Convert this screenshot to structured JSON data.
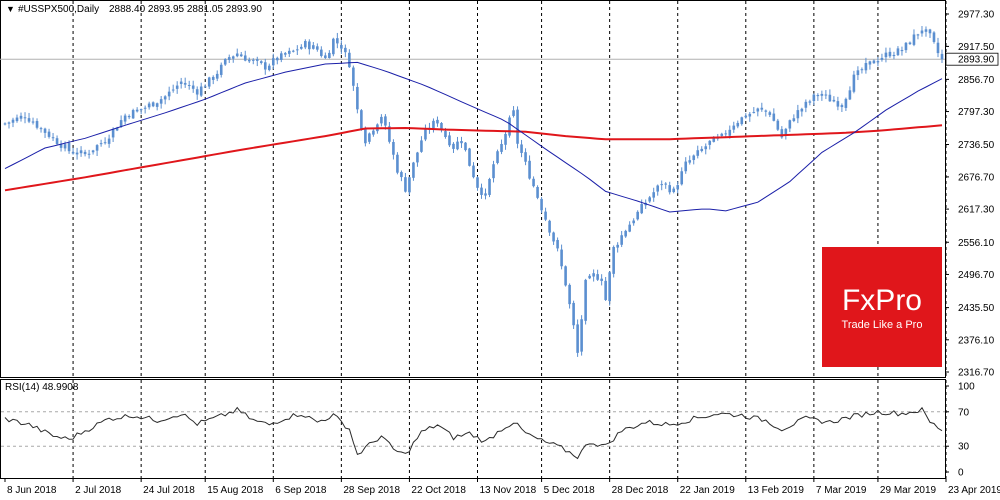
{
  "chart_data": {
    "type": "candlestick",
    "symbol_label": "#USSPX500,Daily",
    "ohlc_readout": "2888.40 2893.95 2881.05 2893.90",
    "price_label": "2893.90",
    "ylim": [
      2316.7,
      2977.3
    ],
    "yticks": [
      "2977.30",
      "2917.50",
      "2856.70",
      "2797.30",
      "2736.50",
      "2676.70",
      "2617.30",
      "2556.10",
      "2496.70",
      "2435.50",
      "2376.10",
      "2316.70"
    ],
    "xticks": [
      "8 Jun 2018",
      "2 Jul 2018",
      "24 Jul 2018",
      "15 Aug 2018",
      "6 Sep 2018",
      "28 Sep 2018",
      "22 Oct 2018",
      "13 Nov 2018",
      "5 Dec 2018",
      "28 Dec 2018",
      "22 Jan 2019",
      "13 Feb 2019",
      "7 Mar 2019",
      "29 Mar 2019",
      "23 Apr 2019"
    ],
    "anchors": [
      {
        "i": 0,
        "v": 2775
      },
      {
        "i": 5,
        "v": 2790
      },
      {
        "i": 10,
        "v": 2760
      },
      {
        "i": 16,
        "v": 2725
      },
      {
        "i": 20,
        "v": 2718
      },
      {
        "i": 25,
        "v": 2745
      },
      {
        "i": 30,
        "v": 2790
      },
      {
        "i": 35,
        "v": 2805
      },
      {
        "i": 40,
        "v": 2825
      },
      {
        "i": 44,
        "v": 2852
      },
      {
        "i": 48,
        "v": 2835
      },
      {
        "i": 52,
        "v": 2860
      },
      {
        "i": 56,
        "v": 2898
      },
      {
        "i": 58,
        "v": 2905
      },
      {
        "i": 62,
        "v": 2888
      },
      {
        "i": 65,
        "v": 2880
      },
      {
        "i": 68,
        "v": 2895
      },
      {
        "i": 72,
        "v": 2908
      },
      {
        "i": 75,
        "v": 2922
      },
      {
        "i": 78,
        "v": 2912
      },
      {
        "i": 80,
        "v": 2895
      },
      {
        "i": 82,
        "v": 2930
      },
      {
        "i": 84,
        "v": 2918
      },
      {
        "i": 86,
        "v": 2886
      },
      {
        "i": 88,
        "v": 2800
      },
      {
        "i": 90,
        "v": 2745
      },
      {
        "i": 92,
        "v": 2768
      },
      {
        "i": 94,
        "v": 2790
      },
      {
        "i": 96,
        "v": 2742
      },
      {
        "i": 98,
        "v": 2690
      },
      {
        "i": 100,
        "v": 2655
      },
      {
        "i": 102,
        "v": 2700
      },
      {
        "i": 104,
        "v": 2745
      },
      {
        "i": 106,
        "v": 2770
      },
      {
        "i": 108,
        "v": 2780
      },
      {
        "i": 110,
        "v": 2752
      },
      {
        "i": 112,
        "v": 2732
      },
      {
        "i": 114,
        "v": 2748
      },
      {
        "i": 116,
        "v": 2700
      },
      {
        "i": 118,
        "v": 2660
      },
      {
        "i": 120,
        "v": 2640
      },
      {
        "i": 122,
        "v": 2700
      },
      {
        "i": 124,
        "v": 2735
      },
      {
        "i": 126,
        "v": 2780
      },
      {
        "i": 127,
        "v": 2795
      },
      {
        "i": 128,
        "v": 2740
      },
      {
        "i": 130,
        "v": 2700
      },
      {
        "i": 132,
        "v": 2660
      },
      {
        "i": 134,
        "v": 2620
      },
      {
        "i": 136,
        "v": 2580
      },
      {
        "i": 138,
        "v": 2540
      },
      {
        "i": 140,
        "v": 2480
      },
      {
        "i": 142,
        "v": 2400
      },
      {
        "i": 143,
        "v": 2351
      },
      {
        "i": 145,
        "v": 2480
      },
      {
        "i": 147,
        "v": 2495
      },
      {
        "i": 149,
        "v": 2490
      },
      {
        "i": 150,
        "v": 2450
      },
      {
        "i": 152,
        "v": 2545
      },
      {
        "i": 155,
        "v": 2580
      },
      {
        "i": 158,
        "v": 2610
      },
      {
        "i": 161,
        "v": 2640
      },
      {
        "i": 164,
        "v": 2665
      },
      {
        "i": 167,
        "v": 2650
      },
      {
        "i": 170,
        "v": 2700
      },
      {
        "i": 173,
        "v": 2720
      },
      {
        "i": 176,
        "v": 2740
      },
      {
        "i": 179,
        "v": 2750
      },
      {
        "i": 182,
        "v": 2775
      },
      {
        "i": 185,
        "v": 2790
      },
      {
        "i": 188,
        "v": 2800
      },
      {
        "i": 191,
        "v": 2795
      },
      {
        "i": 194,
        "v": 2750
      },
      {
        "i": 197,
        "v": 2790
      },
      {
        "i": 200,
        "v": 2810
      },
      {
        "i": 203,
        "v": 2830
      },
      {
        "i": 206,
        "v": 2820
      },
      {
        "i": 209,
        "v": 2810
      },
      {
        "i": 212,
        "v": 2860
      },
      {
        "i": 215,
        "v": 2880
      },
      {
        "i": 218,
        "v": 2895
      },
      {
        "i": 221,
        "v": 2905
      },
      {
        "i": 224,
        "v": 2910
      },
      {
        "i": 227,
        "v": 2935
      },
      {
        "i": 229,
        "v": 2950
      },
      {
        "i": 231,
        "v": 2935
      },
      {
        "i": 233,
        "v": 2905
      },
      {
        "i": 234,
        "v": 2893.9
      }
    ],
    "ma_fast": [
      {
        "i": 0,
        "v": 2692
      },
      {
        "i": 10,
        "v": 2730
      },
      {
        "i": 20,
        "v": 2748
      },
      {
        "i": 30,
        "v": 2772
      },
      {
        "i": 40,
        "v": 2795
      },
      {
        "i": 50,
        "v": 2820
      },
      {
        "i": 60,
        "v": 2850
      },
      {
        "i": 70,
        "v": 2870
      },
      {
        "i": 80,
        "v": 2885
      },
      {
        "i": 88,
        "v": 2888
      },
      {
        "i": 95,
        "v": 2872
      },
      {
        "i": 105,
        "v": 2845
      },
      {
        "i": 115,
        "v": 2812
      },
      {
        "i": 125,
        "v": 2780
      },
      {
        "i": 135,
        "v": 2728
      },
      {
        "i": 145,
        "v": 2678
      },
      {
        "i": 150,
        "v": 2650
      },
      {
        "i": 158,
        "v": 2632
      },
      {
        "i": 166,
        "v": 2612
      },
      {
        "i": 175,
        "v": 2618
      },
      {
        "i": 180,
        "v": 2614
      },
      {
        "i": 188,
        "v": 2630
      },
      {
        "i": 196,
        "v": 2668
      },
      {
        "i": 204,
        "v": 2722
      },
      {
        "i": 212,
        "v": 2758
      },
      {
        "i": 220,
        "v": 2800
      },
      {
        "i": 228,
        "v": 2835
      },
      {
        "i": 234,
        "v": 2858
      }
    ],
    "ma_slow": [
      {
        "i": 0,
        "v": 2652
      },
      {
        "i": 20,
        "v": 2676
      },
      {
        "i": 40,
        "v": 2702
      },
      {
        "i": 60,
        "v": 2728
      },
      {
        "i": 80,
        "v": 2752
      },
      {
        "i": 90,
        "v": 2766
      },
      {
        "i": 100,
        "v": 2767
      },
      {
        "i": 110,
        "v": 2764
      },
      {
        "i": 120,
        "v": 2762
      },
      {
        "i": 130,
        "v": 2760
      },
      {
        "i": 140,
        "v": 2752
      },
      {
        "i": 150,
        "v": 2746
      },
      {
        "i": 165,
        "v": 2746
      },
      {
        "i": 180,
        "v": 2750
      },
      {
        "i": 195,
        "v": 2754
      },
      {
        "i": 210,
        "v": 2758
      },
      {
        "i": 220,
        "v": 2763
      },
      {
        "i": 234,
        "v": 2772
      }
    ],
    "rsi": {
      "label": "RSI(14) 48.9908",
      "ylim": [
        0,
        100
      ],
      "yticks": [
        100,
        70,
        30,
        0
      ],
      "levels": [
        70,
        30
      ],
      "anchors": [
        {
          "i": 0,
          "v": 62
        },
        {
          "i": 6,
          "v": 55
        },
        {
          "i": 12,
          "v": 42
        },
        {
          "i": 16,
          "v": 38
        },
        {
          "i": 20,
          "v": 48
        },
        {
          "i": 26,
          "v": 62
        },
        {
          "i": 32,
          "v": 66
        },
        {
          "i": 38,
          "v": 60
        },
        {
          "i": 44,
          "v": 68
        },
        {
          "i": 48,
          "v": 56
        },
        {
          "i": 54,
          "v": 65
        },
        {
          "i": 58,
          "v": 72
        },
        {
          "i": 62,
          "v": 60
        },
        {
          "i": 66,
          "v": 55
        },
        {
          "i": 70,
          "v": 63
        },
        {
          "i": 74,
          "v": 68
        },
        {
          "i": 78,
          "v": 58
        },
        {
          "i": 82,
          "v": 66
        },
        {
          "i": 86,
          "v": 50
        },
        {
          "i": 88,
          "v": 20
        },
        {
          "i": 90,
          "v": 28
        },
        {
          "i": 94,
          "v": 42
        },
        {
          "i": 97,
          "v": 26
        },
        {
          "i": 100,
          "v": 20
        },
        {
          "i": 104,
          "v": 46
        },
        {
          "i": 108,
          "v": 55
        },
        {
          "i": 112,
          "v": 40
        },
        {
          "i": 116,
          "v": 45
        },
        {
          "i": 120,
          "v": 35
        },
        {
          "i": 124,
          "v": 50
        },
        {
          "i": 127,
          "v": 58
        },
        {
          "i": 130,
          "v": 45
        },
        {
          "i": 134,
          "v": 36
        },
        {
          "i": 138,
          "v": 30
        },
        {
          "i": 143,
          "v": 18
        },
        {
          "i": 146,
          "v": 35
        },
        {
          "i": 150,
          "v": 30
        },
        {
          "i": 154,
          "v": 48
        },
        {
          "i": 160,
          "v": 58
        },
        {
          "i": 166,
          "v": 55
        },
        {
          "i": 172,
          "v": 62
        },
        {
          "i": 178,
          "v": 68
        },
        {
          "i": 184,
          "v": 66
        },
        {
          "i": 190,
          "v": 60
        },
        {
          "i": 194,
          "v": 50
        },
        {
          "i": 200,
          "v": 62
        },
        {
          "i": 206,
          "v": 58
        },
        {
          "i": 212,
          "v": 65
        },
        {
          "i": 218,
          "v": 70
        },
        {
          "i": 224,
          "v": 68
        },
        {
          "i": 229,
          "v": 72
        },
        {
          "i": 231,
          "v": 58
        },
        {
          "i": 234,
          "v": 49
        }
      ]
    },
    "grid": true
  },
  "brand": {
    "name": "FxPro",
    "tagline": "Trade Like a Pro",
    "color": "#e0161b"
  },
  "colors": {
    "candle": "#5b8fd0",
    "ma_fast": "#1a1fa8",
    "ma_slow": "#e0161b",
    "rsi": "#2a2a2a"
  }
}
